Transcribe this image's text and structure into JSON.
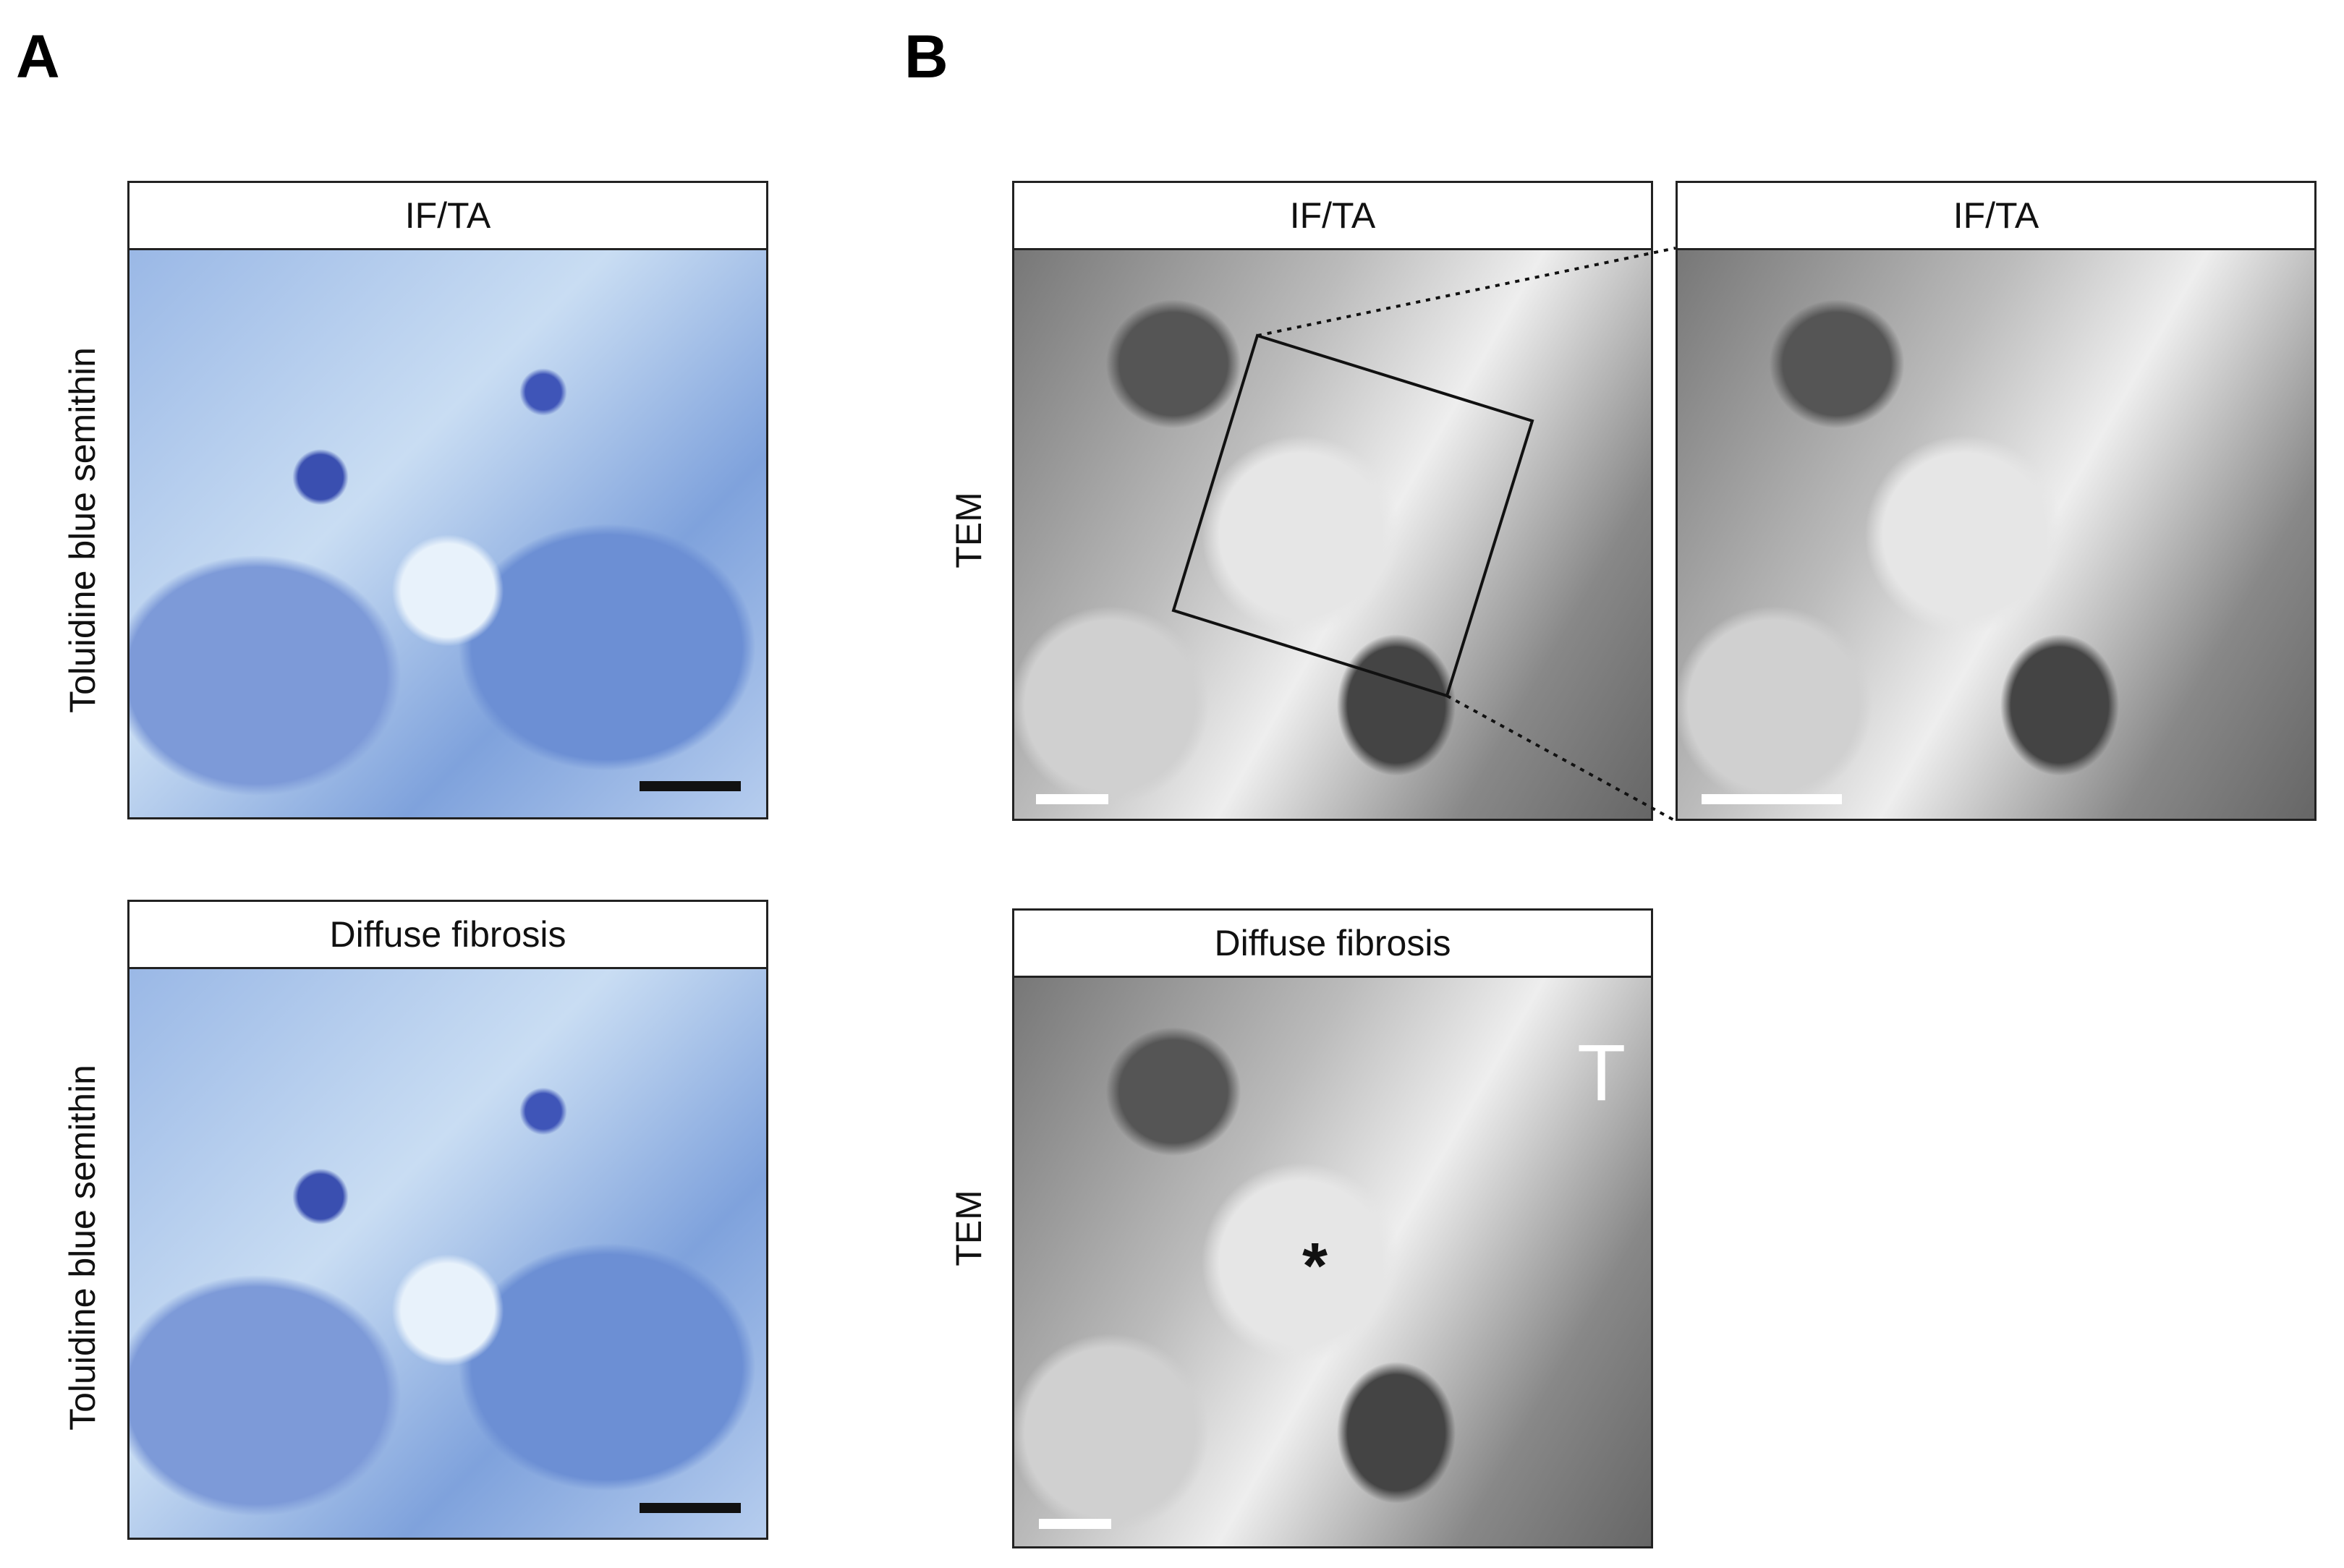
{
  "panel_labels": [
    "A",
    "B"
  ],
  "panels": [
    {
      "header": "IF/TA",
      "row_label": "Toluidine blue semithin"
    },
    {
      "header": "Diffuse fibrosis",
      "row_label": "Toluidine blue semithin"
    },
    {
      "header": "IF/TA",
      "row_label": "TEM"
    },
    {
      "header": "IF/TA"
    },
    {
      "header": "Diffuse fibrosis",
      "row_label": "TEM"
    }
  ],
  "annotations": [
    "*",
    "T"
  ]
}
